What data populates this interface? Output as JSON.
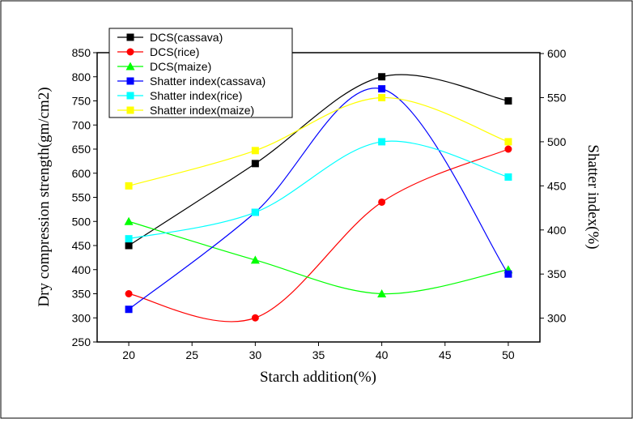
{
  "chart_data": {
    "type": "line",
    "x_label": "Starch addition(%)",
    "y_label": "Dry compression strength(gm/cm2)",
    "y2_label": "Shatter index(%)",
    "x": [
      20,
      30,
      40,
      50
    ],
    "xlim": [
      17.5,
      52.5
    ],
    "xticks": [
      20,
      25,
      30,
      35,
      40,
      45,
      50
    ],
    "ylim": [
      250,
      850
    ],
    "yticks": [
      250,
      300,
      350,
      400,
      450,
      500,
      550,
      600,
      650,
      700,
      750,
      800,
      850
    ],
    "y2lim": [
      273,
      601
    ],
    "y2ticks": [
      300,
      350,
      400,
      450,
      500,
      550,
      600
    ],
    "legend": "upper left",
    "smooth": true,
    "series": [
      {
        "name": "DCS(cassava)",
        "color": "#000000",
        "marker": "square",
        "values": [
          450,
          620,
          800,
          750
        ]
      },
      {
        "name": "DCS(rice)",
        "color": "#ff0000",
        "marker": "circle",
        "values": [
          350,
          300,
          540,
          650
        ]
      },
      {
        "name": "DCS(maize)",
        "color": "#00ff00",
        "marker": "triangle",
        "values": [
          500,
          420,
          350,
          400
        ]
      },
      {
        "name": "Shatter index(cassava)",
        "color": "#0000ff",
        "marker": "square",
        "axis": "y2",
        "values": [
          310,
          420,
          560,
          350
        ]
      },
      {
        "name": "Shatter index(rice)",
        "color": "#00ffff",
        "marker": "square",
        "axis": "y2",
        "values": [
          390,
          420,
          500,
          460
        ]
      },
      {
        "name": "Shatter index(maize)",
        "color": "#ffff00",
        "marker": "square",
        "axis": "y2",
        "values": [
          450,
          490,
          550,
          500
        ]
      }
    ]
  }
}
